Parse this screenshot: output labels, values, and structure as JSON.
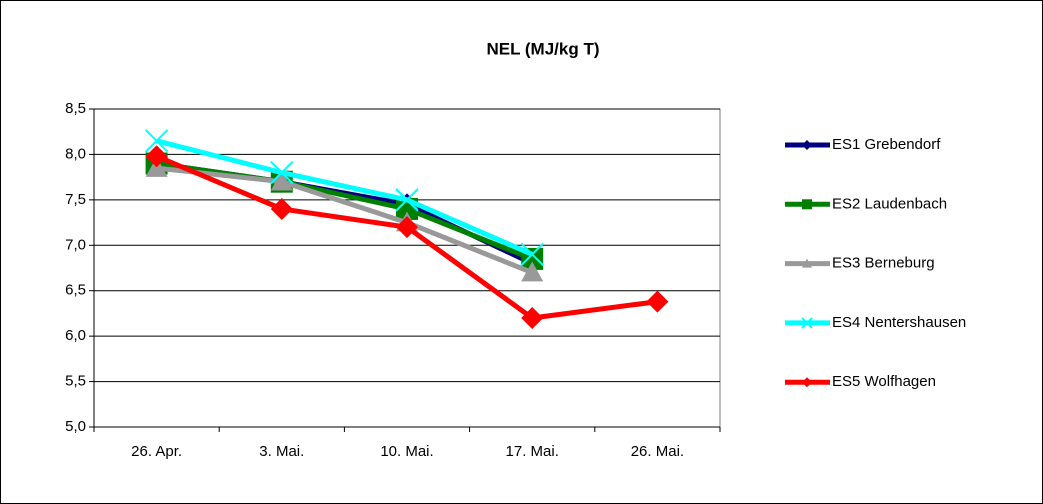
{
  "chart_data": {
    "type": "line",
    "title": "NEL (MJ/kg T)",
    "categories": [
      "26. Apr.",
      "3. Mai.",
      "10. Mai.",
      "17. Mai.",
      "26. Mai."
    ],
    "series": [
      {
        "name": "ES1 Grebendorf",
        "color": "#000080",
        "marker": "diamond",
        "values": [
          7.9,
          7.7,
          7.45,
          6.8,
          null
        ]
      },
      {
        "name": "ES2 Laudenbach",
        "color": "#008000",
        "marker": "square",
        "values": [
          7.9,
          7.7,
          7.4,
          6.85,
          null
        ]
      },
      {
        "name": "ES3 Berneburg",
        "color": "#999999",
        "marker": "triangle",
        "values": [
          7.85,
          7.7,
          7.25,
          6.7,
          null
        ]
      },
      {
        "name": "ES4 Nentershausen",
        "color": "#00ffff",
        "marker": "x",
        "values": [
          8.15,
          7.8,
          7.5,
          6.9,
          null
        ]
      },
      {
        "name": "ES5 Wolfhagen",
        "color": "#ff0000",
        "marker": "diamond",
        "values": [
          7.98,
          7.4,
          7.2,
          6.2,
          6.38
        ]
      }
    ],
    "ylim": [
      5,
      8.5
    ],
    "yticks": [
      {
        "value": 5,
        "label": "5,0"
      },
      {
        "value": 5.5,
        "label": "5,5"
      },
      {
        "value": 6,
        "label": "6,0"
      },
      {
        "value": 6.5,
        "label": "6,5"
      },
      {
        "value": 7,
        "label": "7,0"
      },
      {
        "value": 7.5,
        "label": "7,5"
      },
      {
        "value": 8,
        "label": "8,0"
      },
      {
        "value": 8.5,
        "label": "8,5"
      }
    ],
    "grid": true,
    "legend": "right"
  }
}
